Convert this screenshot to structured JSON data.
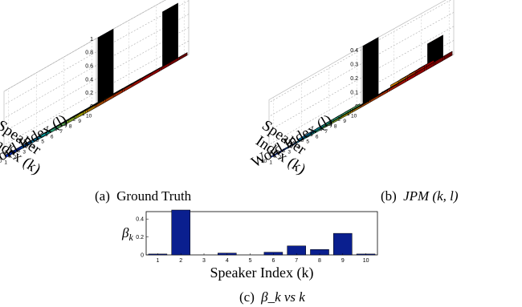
{
  "figure": {
    "panels": [
      {
        "caption_label": "(a)",
        "caption_text": "Ground Truth"
      },
      {
        "caption_label": "(b)",
        "caption_text": "JPM (k, l)"
      },
      {
        "caption_label": "(c)",
        "caption_text": "β_k vs k"
      }
    ]
  },
  "chart_data": [
    {
      "type": "bar3d",
      "panel": "(a)",
      "caption": "Ground Truth",
      "xlabel": "Speaker Index (k)",
      "ylabel": "Word Index (l)",
      "x_ticks": [
        "1",
        "2",
        "3",
        "4",
        "5",
        "6",
        "7",
        "8",
        "9",
        "10"
      ],
      "y_ticks": [
        "1",
        "2",
        "3",
        "4",
        "5",
        "6",
        "7",
        "8",
        "9",
        "10"
      ],
      "z_ticks": [
        "0",
        "0.2",
        "0.4",
        "0.6",
        "0.8",
        "1"
      ],
      "zlim": [
        0,
        1
      ],
      "colormap": "jet",
      "base_level": 0,
      "tall_bars": [
        {
          "k": 1,
          "l": 2,
          "value": 1.0,
          "color": "#1040f0"
        },
        {
          "k": 1,
          "l": 9,
          "value": 0.85,
          "color": "#ff7010"
        }
      ]
    },
    {
      "type": "bar3d",
      "panel": "(b)",
      "caption": "JPM (k, l)",
      "xlabel": "Speaker Index (k)",
      "ylabel": "Word Index (l)",
      "x_ticks": [
        "1",
        "2",
        "3",
        "4",
        "5",
        "6",
        "7",
        "8",
        "9",
        "10"
      ],
      "y_ticks": [
        "1",
        "2",
        "3",
        "4",
        "5",
        "6",
        "7",
        "8",
        "9",
        "10"
      ],
      "z_ticks": [
        "0",
        "0.1",
        "0.2",
        "0.3",
        "0.4"
      ],
      "zlim": [
        0,
        0.42
      ],
      "colormap": "jet",
      "base_level": 0,
      "tall_bars": [
        {
          "k": 1,
          "l": 2,
          "value": 0.42,
          "color": "#1040f0"
        },
        {
          "k": 1,
          "l": 9,
          "value": 0.18,
          "color": "#ff7010"
        }
      ]
    },
    {
      "type": "bar",
      "panel": "(c)",
      "caption": "β_k vs k",
      "xlabel": "Speaker Index (k)",
      "ylabel": "β_k",
      "categories": [
        "1",
        "2",
        "3",
        "4",
        "5",
        "6",
        "7",
        "8",
        "9",
        "10"
      ],
      "values": [
        0.01,
        0.5,
        0.0,
        0.02,
        0.0,
        0.03,
        0.1,
        0.06,
        0.24,
        0.01
      ],
      "y_ticks": [
        "0",
        "0.2",
        "0.4"
      ],
      "ylim": [
        0,
        0.5
      ],
      "bar_color": "#0a1f8f",
      "grid": false
    }
  ]
}
